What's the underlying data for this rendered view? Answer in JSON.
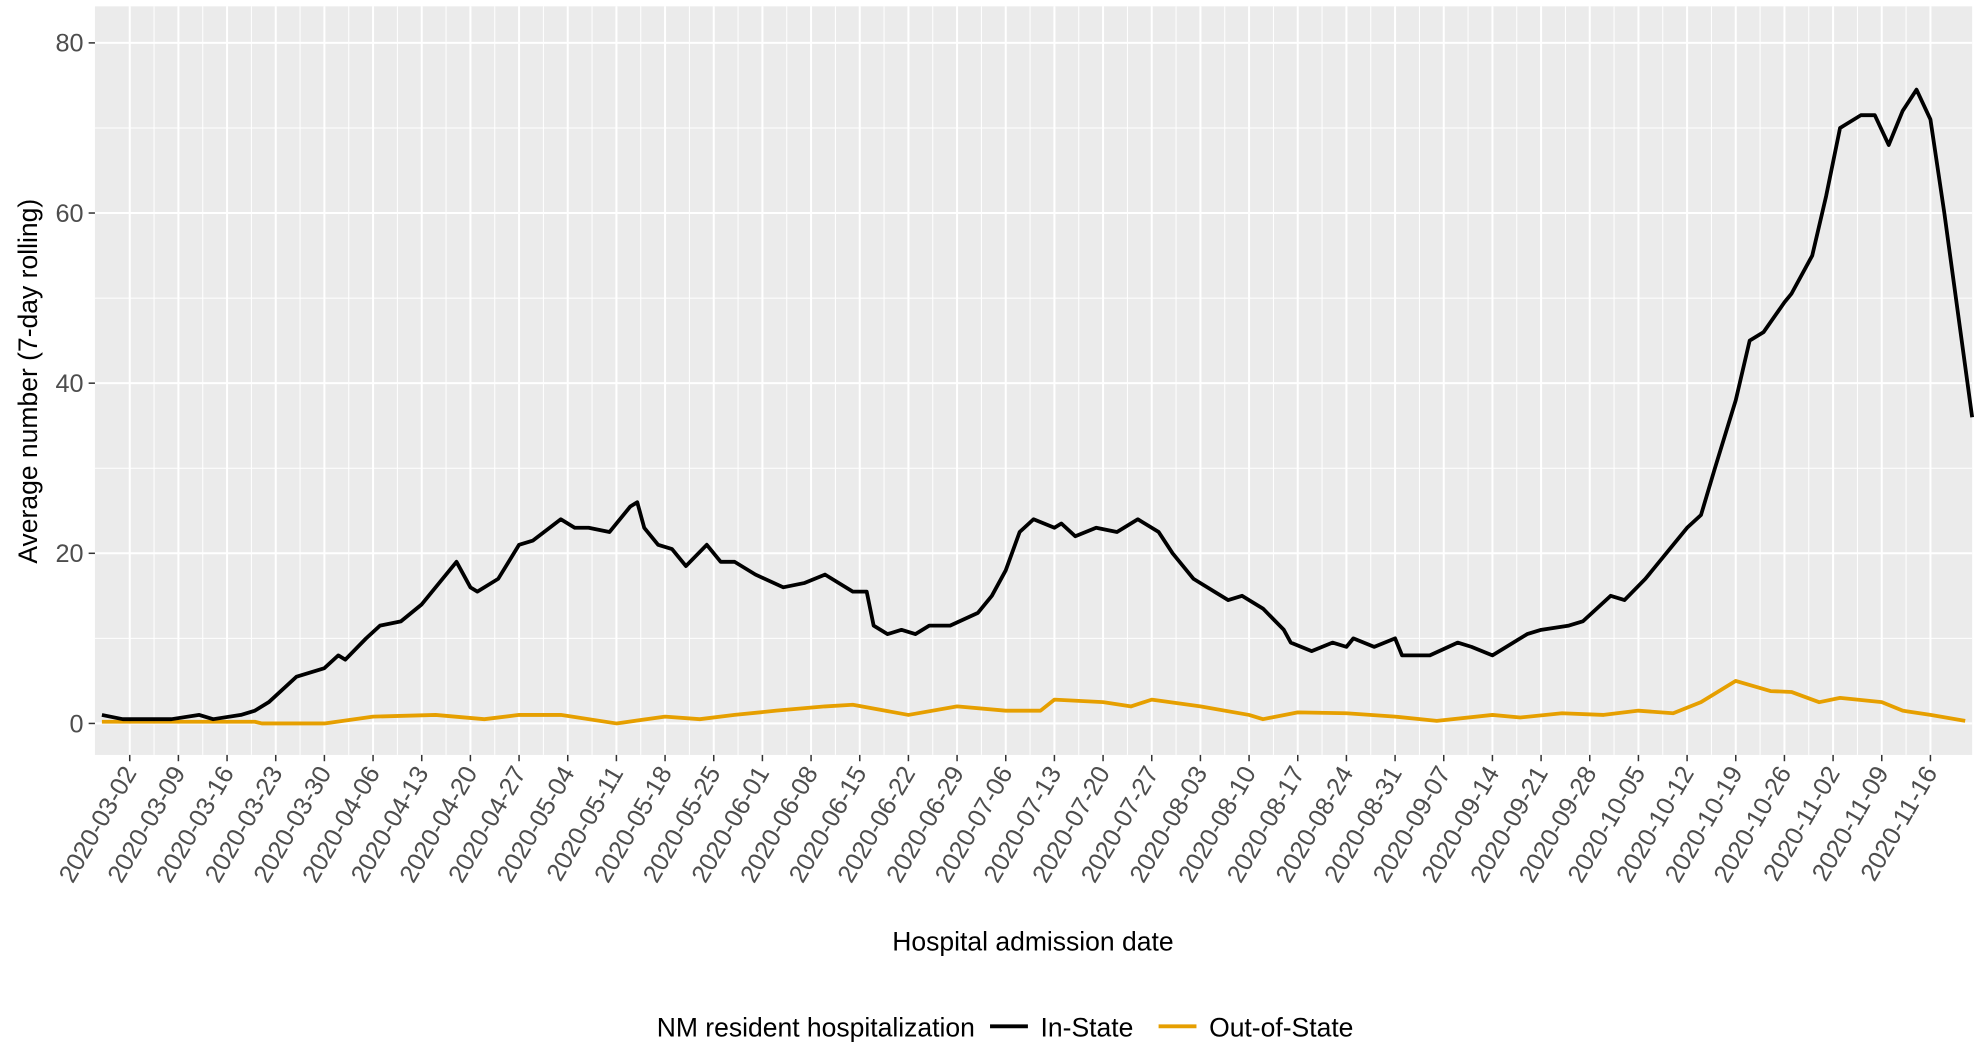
{
  "chart_data": {
    "type": "line",
    "x_label": "Hospital admission date",
    "y_label": "Average number (7-day rolling)",
    "legend_title": "NM resident hospitalization",
    "legend": "bottom",
    "grid": true,
    "xlim": [
      "2020-02-26",
      "2020-11-22"
    ],
    "ylim": [
      -3.7,
      84.3
    ],
    "yticks": [
      0,
      20,
      40,
      60,
      80
    ],
    "xticks": [
      "2020-03-02",
      "2020-03-09",
      "2020-03-16",
      "2020-03-23",
      "2020-03-30",
      "2020-04-06",
      "2020-04-13",
      "2020-04-20",
      "2020-04-27",
      "2020-05-04",
      "2020-05-11",
      "2020-05-18",
      "2020-05-25",
      "2020-06-01",
      "2020-06-08",
      "2020-06-15",
      "2020-06-22",
      "2020-06-29",
      "2020-07-06",
      "2020-07-13",
      "2020-07-20",
      "2020-07-27",
      "2020-08-03",
      "2020-08-10",
      "2020-08-17",
      "2020-08-24",
      "2020-08-31",
      "2020-09-07",
      "2020-09-14",
      "2020-09-21",
      "2020-09-28",
      "2020-10-05",
      "2020-10-12",
      "2020-10-19",
      "2020-10-26",
      "2020-11-02",
      "2020-11-09",
      "2020-11-16"
    ],
    "series": [
      {
        "name": "In-State",
        "color": "#000000",
        "x": [
          "2020-02-27",
          "2020-03-01",
          "2020-03-08",
          "2020-03-12",
          "2020-03-14",
          "2020-03-18",
          "2020-03-20",
          "2020-03-22",
          "2020-03-26",
          "2020-03-30",
          "2020-04-01",
          "2020-04-02",
          "2020-04-05",
          "2020-04-07",
          "2020-04-10",
          "2020-04-13",
          "2020-04-16",
          "2020-04-18",
          "2020-04-20",
          "2020-04-21",
          "2020-04-24",
          "2020-04-27",
          "2020-04-29",
          "2020-05-03",
          "2020-05-05",
          "2020-05-07",
          "2020-05-10",
          "2020-05-13",
          "2020-05-14",
          "2020-05-15",
          "2020-05-17",
          "2020-05-19",
          "2020-05-21",
          "2020-05-24",
          "2020-05-26",
          "2020-05-28",
          "2020-05-31",
          "2020-06-04",
          "2020-06-07",
          "2020-06-10",
          "2020-06-14",
          "2020-06-16",
          "2020-06-17",
          "2020-06-19",
          "2020-06-21",
          "2020-06-23",
          "2020-06-25",
          "2020-06-28",
          "2020-07-02",
          "2020-07-04",
          "2020-07-06",
          "2020-07-08",
          "2020-07-10",
          "2020-07-13",
          "2020-07-14",
          "2020-07-16",
          "2020-07-19",
          "2020-07-22",
          "2020-07-25",
          "2020-07-28",
          "2020-07-30",
          "2020-08-02",
          "2020-08-05",
          "2020-08-07",
          "2020-08-09",
          "2020-08-12",
          "2020-08-15",
          "2020-08-16",
          "2020-08-19",
          "2020-08-22",
          "2020-08-24",
          "2020-08-25",
          "2020-08-28",
          "2020-08-31",
          "2020-09-01",
          "2020-09-05",
          "2020-09-09",
          "2020-09-11",
          "2020-09-14",
          "2020-09-16",
          "2020-09-19",
          "2020-09-21",
          "2020-09-25",
          "2020-09-27",
          "2020-09-29",
          "2020-10-01",
          "2020-10-03",
          "2020-10-06",
          "2020-10-09",
          "2020-10-12",
          "2020-10-14",
          "2020-10-16",
          "2020-10-19",
          "2020-10-21",
          "2020-10-23",
          "2020-10-26",
          "2020-10-27",
          "2020-10-30",
          "2020-11-01",
          "2020-11-03",
          "2020-11-06",
          "2020-11-08",
          "2020-11-10",
          "2020-11-12",
          "2020-11-14",
          "2020-11-16",
          "2020-11-18",
          "2020-11-22"
        ],
        "values": [
          1,
          0.5,
          0.5,
          1,
          0.5,
          1,
          1.5,
          2.5,
          5.5,
          6.5,
          8,
          7.5,
          10,
          11.5,
          12,
          14,
          17,
          19,
          16,
          15.5,
          17,
          21,
          21.5,
          24,
          23,
          23,
          22.5,
          25.5,
          26,
          23,
          21,
          20.5,
          18.5,
          21,
          19,
          19,
          17.5,
          16,
          16.5,
          17.5,
          15.5,
          15.5,
          11.5,
          10.5,
          11,
          10.5,
          11.5,
          11.5,
          13,
          15,
          18,
          22.5,
          24,
          23,
          23.5,
          22,
          23,
          22.5,
          24,
          22.5,
          20,
          17,
          15.5,
          14.5,
          15,
          13.5,
          11,
          9.5,
          8.5,
          9.5,
          9,
          10,
          9,
          10,
          8,
          8,
          9.5,
          9,
          8,
          9,
          10.5,
          11,
          11.5,
          12,
          13.5,
          15,
          14.5,
          17,
          20,
          23,
          24.5,
          30,
          38,
          45,
          46,
          49.5,
          50.5,
          55,
          62,
          70,
          71.5,
          71.5,
          68,
          72,
          74.5,
          71,
          60,
          36
        ]
      },
      {
        "name": "Out-of-State",
        "color": "#E69F00",
        "x": [
          "2020-02-27",
          "2020-03-20",
          "2020-03-21",
          "2020-03-30",
          "2020-04-06",
          "2020-04-15",
          "2020-04-22",
          "2020-04-27",
          "2020-05-03",
          "2020-05-11",
          "2020-05-18",
          "2020-05-23",
          "2020-05-28",
          "2020-06-03",
          "2020-06-10",
          "2020-06-14",
          "2020-06-22",
          "2020-06-29",
          "2020-07-06",
          "2020-07-11",
          "2020-07-13",
          "2020-07-20",
          "2020-07-24",
          "2020-07-27",
          "2020-08-03",
          "2020-08-10",
          "2020-08-12",
          "2020-08-17",
          "2020-08-24",
          "2020-08-31",
          "2020-09-06",
          "2020-09-14",
          "2020-09-18",
          "2020-09-24",
          "2020-09-30",
          "2020-10-05",
          "2020-10-10",
          "2020-10-14",
          "2020-10-17",
          "2020-10-19",
          "2020-10-24",
          "2020-10-27",
          "2020-10-31",
          "2020-11-03",
          "2020-11-09",
          "2020-11-12",
          "2020-11-16",
          "2020-11-21"
        ],
        "values": [
          0.2,
          0.2,
          0,
          0,
          0.8,
          1,
          0.5,
          1,
          1,
          0,
          0.8,
          0.5,
          1,
          1.5,
          2,
          2.2,
          1,
          2,
          1.5,
          1.5,
          2.8,
          2.5,
          2,
          2.8,
          2,
          1,
          0.5,
          1.3,
          1.2,
          0.8,
          0.3,
          1,
          0.7,
          1.2,
          1,
          1.5,
          1.2,
          2.5,
          4,
          5,
          3.8,
          3.7,
          2.5,
          3,
          2.5,
          1.5,
          1,
          0.3
        ]
      }
    ]
  }
}
